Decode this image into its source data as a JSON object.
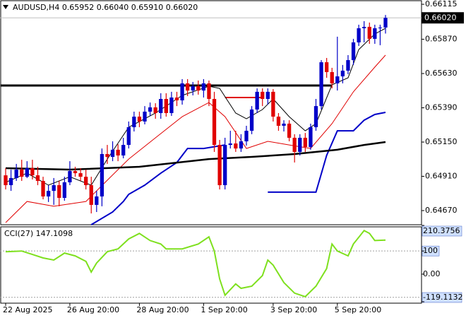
{
  "chart_data": {
    "type": "candlestick",
    "title": "AUDUSD,H4  0.65952 0.66040 0.65910 0.66020",
    "up_color": "#0000c8",
    "down_color": "#e00000",
    "open": [
      0.64917,
      0.64848,
      0.64898,
      0.64957,
      0.64907,
      0.64967,
      0.64917,
      0.64878,
      0.64769,
      0.64808,
      0.64848,
      0.64759,
      0.64868,
      0.64947,
      0.64932,
      0.64907,
      0.64848,
      0.6471,
      0.64769,
      0.65066,
      0.65046,
      0.65096,
      0.65056,
      0.6513,
      0.65254,
      0.65328,
      0.65294,
      0.65363,
      0.65393,
      0.65353,
      0.65452,
      0.65353,
      0.65462,
      0.65442,
      0.65561,
      0.65511,
      0.65541,
      0.65511,
      0.65561,
      0.65452,
      0.6513,
      0.64848,
      0.6513,
      0.6514,
      0.65105,
      0.65155,
      0.65229,
      0.65378,
      0.65502,
      0.65452,
      0.65502,
      0.65328,
      0.65264,
      0.65279,
      0.6518,
      0.65081,
      0.6518,
      0.65115,
      0.65254,
      0.65402,
      0.65709,
      0.6564,
      0.65561,
      0.6561,
      0.6565,
      0.65724,
      0.65848,
      0.65947,
      0.65957,
      0.65873,
      0.65947,
      0.65952
    ],
    "high": [
      0.64967,
      0.64957,
      0.64997,
      0.65026,
      0.65016,
      0.65026,
      0.64977,
      0.64907,
      0.64848,
      0.64898,
      0.64878,
      0.64907,
      0.65016,
      0.64977,
      0.64967,
      0.64957,
      0.64907,
      0.64808,
      0.65105,
      0.6513,
      0.65155,
      0.65135,
      0.6518,
      0.65294,
      0.65363,
      0.65363,
      0.65402,
      0.65427,
      0.65422,
      0.65492,
      0.65492,
      0.65502,
      0.65502,
      0.65591,
      0.65591,
      0.65571,
      0.65581,
      0.65591,
      0.65581,
      0.65502,
      0.65165,
      0.6518,
      0.65229,
      0.65229,
      0.65205,
      0.65264,
      0.65402,
      0.65526,
      0.65526,
      0.65526,
      0.65521,
      0.65353,
      0.65303,
      0.65303,
      0.65205,
      0.65205,
      0.65214,
      0.65279,
      0.65452,
      0.65724,
      0.65739,
      0.6567,
      0.65888,
      0.6569,
      0.65759,
      0.65873,
      0.65972,
      0.65997,
      0.65987,
      0.65972,
      0.65972,
      0.6604
    ],
    "low": [
      0.64818,
      0.64808,
      0.64878,
      0.64878,
      0.64898,
      0.64888,
      0.64848,
      0.64749,
      0.6473,
      0.6471,
      0.647,
      0.64739,
      0.64848,
      0.64907,
      0.64878,
      0.64818,
      0.6465,
      0.6466,
      0.647,
      0.64997,
      0.65016,
      0.65016,
      0.65036,
      0.65105,
      0.65224,
      0.65254,
      0.65274,
      0.65333,
      0.65313,
      0.65313,
      0.65328,
      0.65333,
      0.65402,
      0.65412,
      0.65472,
      0.65477,
      0.65482,
      0.65462,
      0.65402,
      0.65081,
      0.64818,
      0.64818,
      0.65105,
      0.65081,
      0.65081,
      0.65125,
      0.65205,
      0.65353,
      0.65402,
      0.65412,
      0.65294,
      0.65229,
      0.65224,
      0.65155,
      0.65007,
      0.65056,
      0.65081,
      0.65096,
      0.65229,
      0.65378,
      0.656,
      0.65526,
      0.65511,
      0.65561,
      0.65625,
      0.6569,
      0.65823,
      0.65848,
      0.65838,
      0.65838,
      0.65828,
      0.6591
    ],
    "close": [
      0.64848,
      0.64898,
      0.64957,
      0.64907,
      0.64967,
      0.64917,
      0.64878,
      0.64769,
      0.64808,
      0.64848,
      0.64759,
      0.64868,
      0.64947,
      0.64932,
      0.64907,
      0.64848,
      0.6471,
      0.64769,
      0.65066,
      0.65046,
      0.65096,
      0.65056,
      0.6513,
      0.65254,
      0.65328,
      0.65294,
      0.65363,
      0.65393,
      0.65353,
      0.65452,
      0.65353,
      0.65462,
      0.65442,
      0.65561,
      0.65511,
      0.65541,
      0.65511,
      0.65561,
      0.65452,
      0.6513,
      0.64848,
      0.6513,
      0.6514,
      0.65105,
      0.65155,
      0.65229,
      0.65378,
      0.65502,
      0.65452,
      0.65502,
      0.65328,
      0.65264,
      0.65279,
      0.6518,
      0.65081,
      0.6518,
      0.65115,
      0.65254,
      0.65402,
      0.65709,
      0.6564,
      0.65561,
      0.6561,
      0.6565,
      0.65724,
      0.65848,
      0.65947,
      0.65957,
      0.65873,
      0.65947,
      0.65952,
      0.6602
    ],
    "categories": [
      "22 Aug 2025",
      null,
      null,
      null,
      null,
      null,
      null,
      null,
      null,
      null,
      null,
      null,
      "26 Aug 20:00",
      null,
      null,
      null,
      null,
      null,
      null,
      null,
      null,
      null,
      null,
      null,
      null,
      "28 Aug 20:00",
      null,
      null,
      null,
      null,
      null,
      null,
      null,
      null,
      null,
      null,
      null,
      "1 Sep 20:00",
      null,
      null,
      null,
      null,
      null,
      null,
      null,
      null,
      null,
      null,
      null,
      null,
      "3 Sep 20:00",
      null,
      null,
      null,
      null,
      null,
      null,
      null,
      null,
      null,
      null,
      null,
      "5 Sep 20:00",
      null,
      null,
      null,
      null,
      null,
      null,
      null,
      null,
      null
    ],
    "ylim": [
      0.64571,
      0.66145
    ],
    "yticks": [
      {
        "value": 0.66115,
        "label": "0.66115"
      },
      {
        "value": 0.6587,
        "label": "0.65870"
      },
      {
        "value": 0.6563,
        "label": "0.65630"
      },
      {
        "value": 0.6539,
        "label": "0.65390"
      },
      {
        "value": 0.6515,
        "label": "0.65150"
      },
      {
        "value": 0.6491,
        "label": "0.64910"
      },
      {
        "value": 0.6467,
        "label": "0.64670"
      }
    ],
    "current_price": {
      "value": 0.6602,
      "label": "0.66020"
    },
    "overlays": [
      {
        "color": "#000000",
        "width": 1,
        "x": [
          0,
          4,
          8,
          12,
          16,
          19,
          23,
          28,
          33,
          38,
          40,
          43,
          45,
          48,
          50,
          53,
          56,
          58,
          61,
          64,
          66,
          69,
          71
        ],
        "values": [
          0.64868,
          0.64932,
          0.64848,
          0.64907,
          0.64848,
          0.65031,
          0.65254,
          0.65353,
          0.65477,
          0.65541,
          0.65526,
          0.65353,
          0.65313,
          0.65378,
          0.65452,
          0.65328,
          0.65229,
          0.65279,
          0.65551,
          0.656,
          0.65798,
          0.65907,
          0.65947
        ]
      },
      {
        "color": "#e00000",
        "width": 1,
        "x": [
          0,
          4,
          9,
          15,
          19,
          23,
          28,
          33,
          38,
          41,
          45,
          49,
          53,
          57,
          61,
          65,
          69,
          71
        ],
        "values": [
          0.64586,
          0.64734,
          0.647,
          0.64734,
          0.64883,
          0.65031,
          0.6518,
          0.65328,
          0.65427,
          0.65328,
          0.65105,
          0.65155,
          0.6513,
          0.65105,
          0.65279,
          0.65502,
          0.65675,
          0.65759
        ]
      },
      {
        "color": "#0000c8",
        "width": 2,
        "x": [
          16,
          20,
          22,
          23,
          26,
          29,
          32,
          34,
          37,
          41,
          42,
          49,
          58,
          60,
          62,
          65,
          67,
          69,
          71
        ],
        "values": [
          0.64571,
          0.6466,
          0.64734,
          0.64784,
          0.64848,
          0.64932,
          0.65007,
          0.65105,
          0.65105,
          0.6513,
          null,
          0.64799,
          0.64799,
          0.65056,
          0.65229,
          0.65229,
          0.65303,
          0.65343,
          0.65358
        ]
      },
      {
        "color": "#000000",
        "width": 2.5,
        "x": [
          0,
          12,
          25,
          38,
          46,
          54,
          62,
          67,
          71
        ],
        "values": [
          0.64967,
          0.64957,
          0.64977,
          0.65031,
          0.65046,
          0.65066,
          0.65096,
          0.6513,
          0.6515
        ]
      }
    ],
    "levels": [
      {
        "color": "#000000",
        "width": 3,
        "value": 0.65546,
        "x": [
          -1,
          61
        ]
      },
      {
        "color": "#e00000",
        "width": 2,
        "value": 0.65462,
        "x": [
          41,
          48
        ]
      }
    ],
    "cci": {
      "title": "CCI(27) 147.1098",
      "color": "#7ee01e",
      "ylim": [
        -119.1132,
        210.3756
      ],
      "yticks": [
        210.3756,
        100,
        {
          "value": 0,
          "label": "0.00"
        },
        -119.1132
      ],
      "levels": [
        100,
        -100
      ],
      "x": [
        0,
        3,
        5,
        7,
        9,
        11,
        13,
        15,
        16,
        17,
        19,
        21,
        23,
        25,
        27,
        29,
        30,
        33,
        36,
        38,
        39,
        40,
        41,
        43,
        44,
        46,
        48,
        49,
        50,
        52,
        54,
        56,
        58,
        60,
        61,
        62,
        64,
        65,
        67,
        68,
        69,
        71
      ],
      "values": [
        97,
        100,
        85,
        70,
        61,
        91,
        79,
        55,
        9,
        48,
        97,
        109,
        152,
        176,
        145,
        130,
        109,
        109,
        130,
        161,
        100,
        -21,
        -91,
        -42,
        -61,
        -52,
        -6,
        61,
        39,
        -36,
        -82,
        -97,
        -52,
        24,
        130,
        100,
        79,
        130,
        188,
        176,
        145,
        147.1098
      ]
    }
  }
}
